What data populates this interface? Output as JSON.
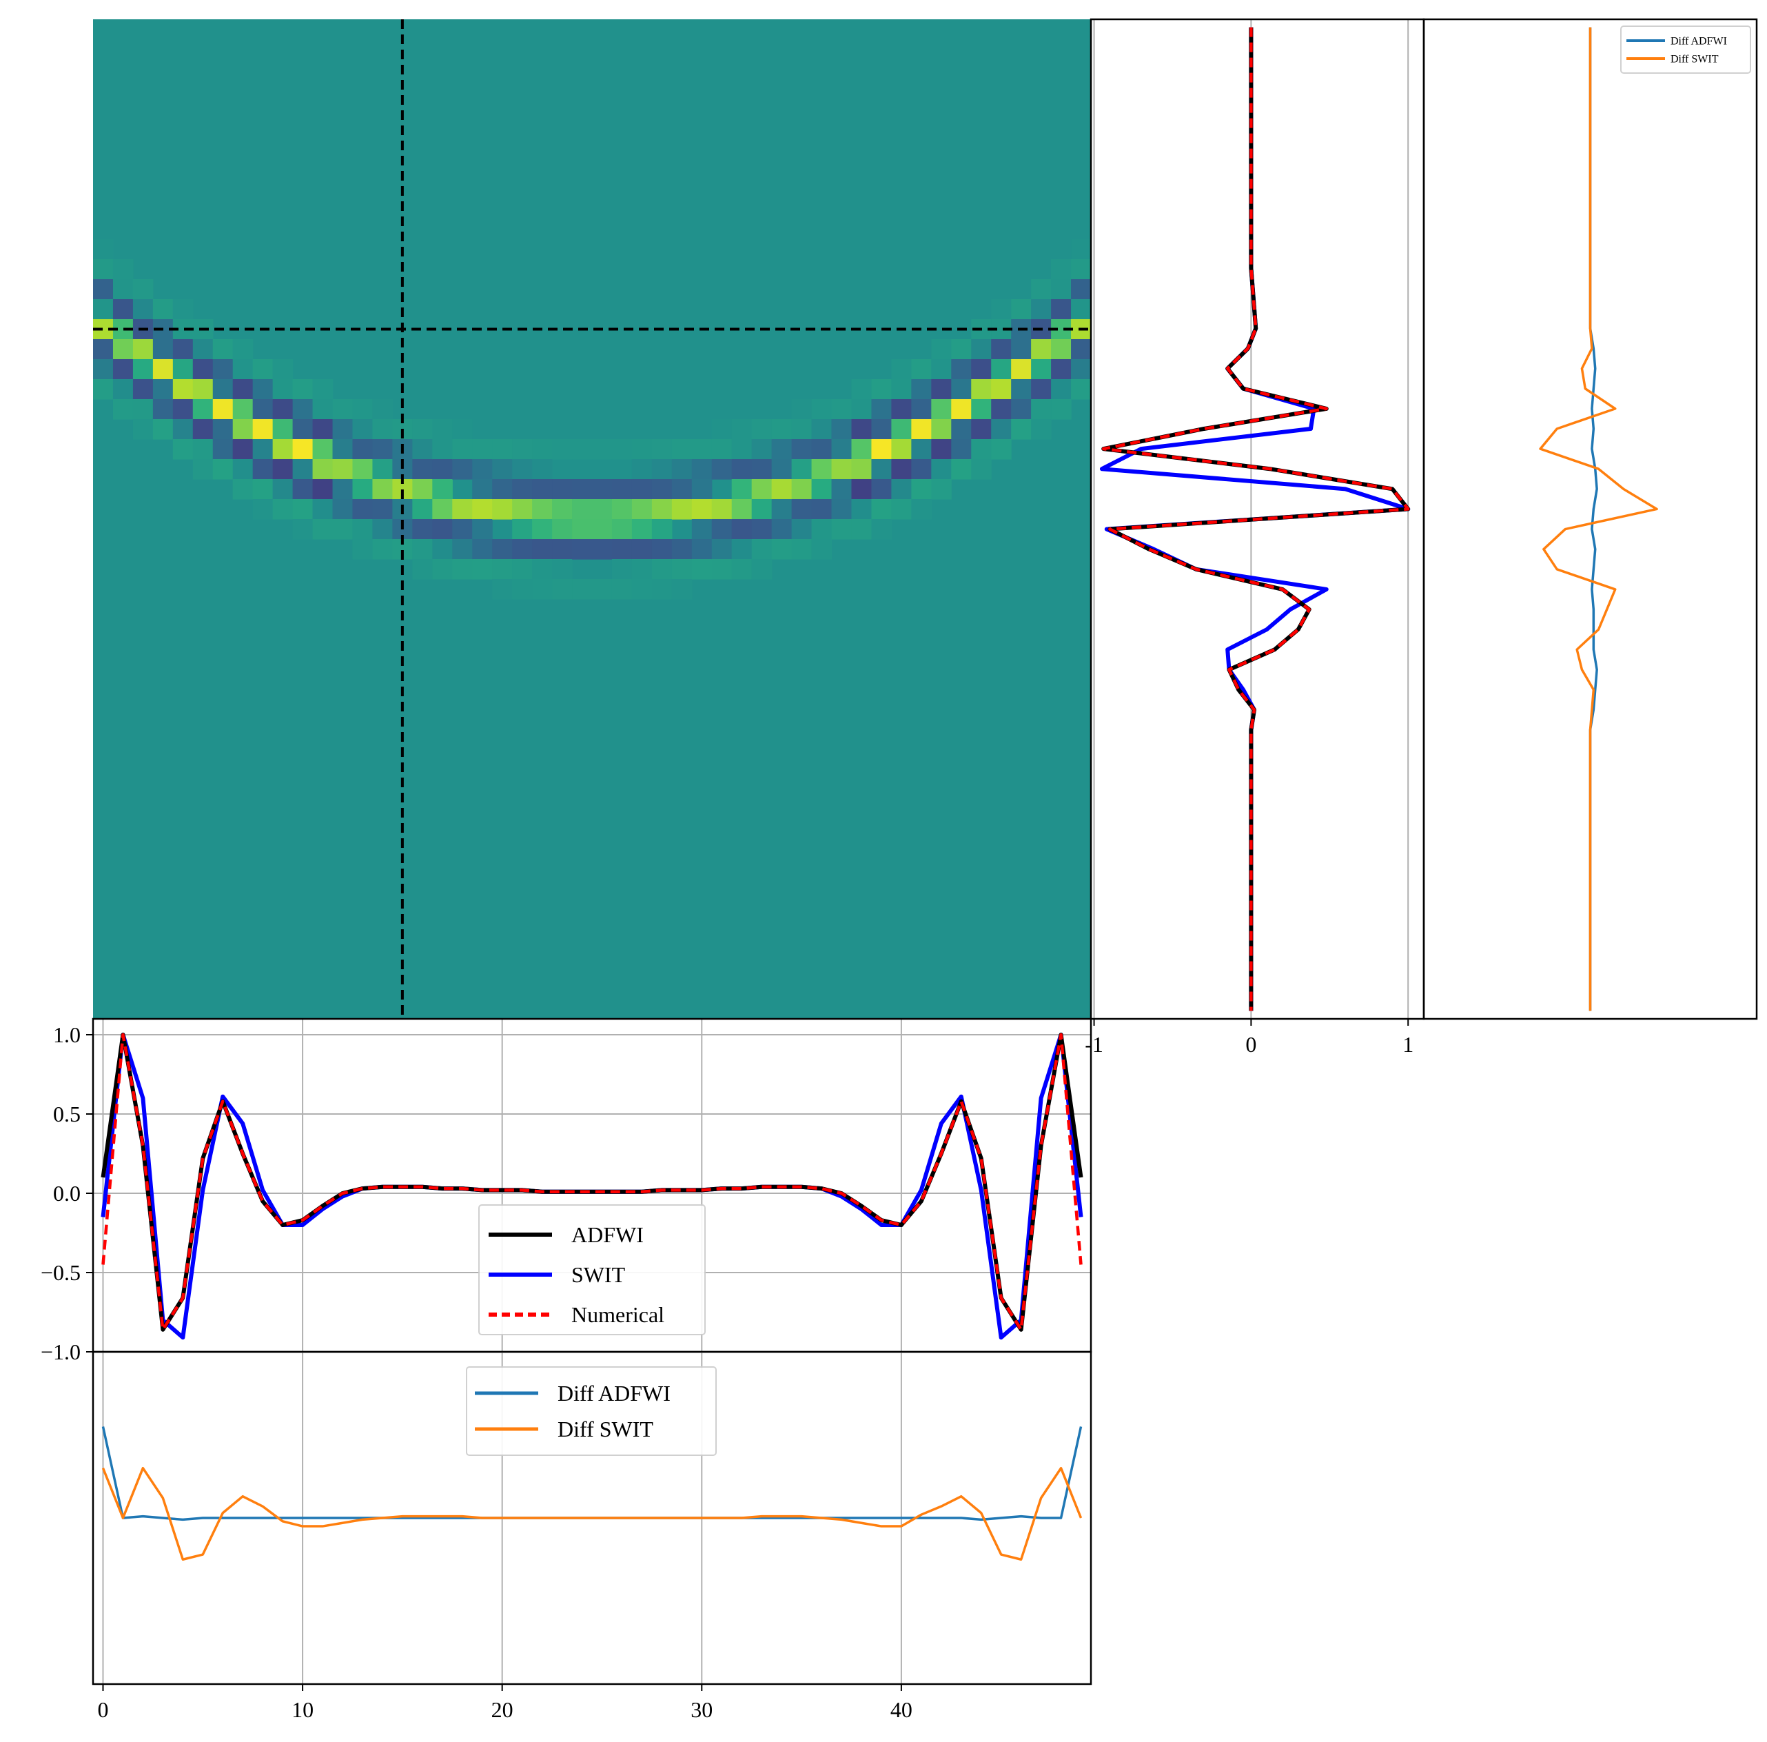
{
  "colors": {
    "adfwi": "#000000",
    "swit": "#0000ff",
    "numerical": "#ff0000",
    "diff_adfwi": "#1f77b4",
    "diff_swit": "#ff7f0e",
    "grid": "#b0b0b0",
    "crosshair": "#000000",
    "viridis": [
      "#440154",
      "#472d7b",
      "#3b528b",
      "#2c728e",
      "#21918c",
      "#28ae80",
      "#5ec962",
      "#addc30",
      "#fde725"
    ]
  },
  "chart_data": [
    {
      "id": "heatmap",
      "type": "heatmap",
      "colormap": "viridis",
      "n_cols": 50,
      "n_rows": 50,
      "clim": [
        -1,
        1
      ],
      "background": 0,
      "arc": {
        "center_col": 24.5,
        "depth_center": 24.5,
        "depth_edge": 14.8,
        "wavelet_width": 1.6
      },
      "crosshair": {
        "col": 15,
        "row": 15
      },
      "grid": false
    },
    {
      "id": "vertical-trace",
      "type": "line",
      "orientation": "vertical",
      "y": [
        0,
        1,
        2,
        3,
        4,
        5,
        6,
        7,
        8,
        9,
        10,
        11,
        12,
        13,
        14,
        15,
        16,
        17,
        18,
        19,
        20,
        21,
        22,
        23,
        24,
        25,
        26,
        27,
        28,
        29,
        30,
        31,
        32,
        33,
        34,
        35,
        36,
        37,
        38,
        39,
        40,
        41,
        42,
        43,
        44,
        45,
        46,
        47,
        48,
        49
      ],
      "ylim": [
        49.4,
        -0.4
      ],
      "xlim": [
        -1.02,
        1.1
      ],
      "xticks": [
        -1,
        0,
        1
      ],
      "xticklabels": [
        "-1",
        "0",
        "1"
      ],
      "grid": true,
      "series": [
        {
          "name": "ADFWI",
          "style": "solid",
          "values": [
            0,
            0,
            0,
            0,
            0,
            0,
            0,
            0,
            0,
            0,
            0,
            0,
            0,
            0.01,
            0.02,
            0.03,
            -0.02,
            -0.15,
            -0.05,
            0.48,
            -0.3,
            -0.94,
            0.12,
            0.9,
            1.0,
            -0.9,
            -0.65,
            -0.35,
            0.2,
            0.37,
            0.3,
            0.15,
            -0.14,
            -0.08,
            0.02,
            0,
            0,
            0,
            0,
            0,
            0,
            0,
            0,
            0,
            0,
            0,
            0,
            0,
            0,
            0
          ]
        },
        {
          "name": "SWIT",
          "style": "solid",
          "values": [
            0,
            0,
            0,
            0,
            0,
            0,
            0,
            0,
            0,
            0,
            0,
            0,
            0,
            0.01,
            0.02,
            0.03,
            -0.02,
            -0.15,
            -0.05,
            0.4,
            0.38,
            -0.7,
            -0.95,
            0.6,
            1.0,
            -0.92,
            -0.62,
            -0.35,
            0.48,
            0.25,
            0.1,
            -0.15,
            -0.14,
            -0.05,
            0.02,
            0,
            0,
            0,
            0,
            0,
            0,
            0,
            0,
            0,
            0,
            0,
            0,
            0,
            0,
            0
          ]
        },
        {
          "name": "Numerical",
          "style": "dashed",
          "values": [
            0,
            0,
            0,
            0,
            0,
            0,
            0,
            0,
            0,
            0,
            0,
            0,
            0,
            0.01,
            0.02,
            0.03,
            -0.02,
            -0.15,
            -0.05,
            0.48,
            -0.3,
            -0.94,
            0.12,
            0.9,
            1.0,
            -0.9,
            -0.65,
            -0.35,
            0.2,
            0.37,
            0.3,
            0.15,
            -0.14,
            -0.08,
            0.02,
            0,
            0,
            0,
            0,
            0,
            0,
            0,
            0,
            0,
            0,
            0,
            0,
            0,
            0,
            0
          ]
        }
      ]
    },
    {
      "id": "vertical-diff",
      "type": "line",
      "orientation": "vertical",
      "y": [
        0,
        1,
        2,
        3,
        4,
        5,
        6,
        7,
        8,
        9,
        10,
        11,
        12,
        13,
        14,
        15,
        16,
        17,
        18,
        19,
        20,
        21,
        22,
        23,
        24,
        25,
        26,
        27,
        28,
        29,
        30,
        31,
        32,
        33,
        34,
        35,
        36,
        37,
        38,
        39,
        40,
        41,
        42,
        43,
        44,
        45,
        46,
        47,
        48,
        49
      ],
      "ylim": [
        49.4,
        -0.4
      ],
      "xlim": [
        -1.0,
        1.0
      ],
      "grid": false,
      "legend": {
        "placement": "upper right",
        "entries": [
          "Diff ADFWI",
          "Diff SWIT"
        ]
      },
      "series": [
        {
          "name": "Diff ADFWI",
          "values": [
            0,
            0,
            0,
            0,
            0,
            0,
            0,
            0,
            0,
            0,
            0,
            0,
            0,
            0,
            0,
            0,
            0.02,
            0.03,
            0.02,
            0.01,
            0.02,
            0.01,
            0.03,
            0.04,
            0.02,
            0.01,
            0.03,
            0.02,
            0.01,
            0.02,
            0.02,
            0.02,
            0.04,
            0.03,
            0.02,
            0,
            0,
            0,
            0,
            0,
            0,
            0,
            0,
            0,
            0,
            0,
            0,
            0,
            0,
            0
          ]
        },
        {
          "name": "Diff SWIT",
          "values": [
            0,
            0,
            0,
            0,
            0,
            0,
            0,
            0,
            0,
            0,
            0,
            0,
            0,
            0,
            0,
            0,
            0.01,
            -0.05,
            -0.03,
            0.15,
            -0.2,
            -0.3,
            0.05,
            0.2,
            0.4,
            -0.15,
            -0.28,
            -0.2,
            0.15,
            0.1,
            0.05,
            -0.08,
            -0.05,
            0.02,
            0.01,
            0,
            0,
            0,
            0,
            0,
            0,
            0,
            0,
            0,
            0,
            0,
            0,
            0,
            0,
            0
          ]
        }
      ]
    },
    {
      "id": "horizontal-trace",
      "type": "line",
      "x": [
        0,
        1,
        2,
        3,
        4,
        5,
        6,
        7,
        8,
        9,
        10,
        11,
        12,
        13,
        14,
        15,
        16,
        17,
        18,
        19,
        20,
        21,
        22,
        23,
        24,
        25,
        26,
        27,
        28,
        29,
        30,
        31,
        32,
        33,
        34,
        35,
        36,
        37,
        38,
        39,
        40,
        41,
        42,
        43,
        44,
        45,
        46,
        47,
        48,
        49
      ],
      "xlim": [
        -0.5,
        49.5
      ],
      "ylim": [
        -1.0,
        1.1
      ],
      "yticks": [
        1.0,
        0.5,
        0.0,
        -0.5,
        -1.0
      ],
      "yticklabels": [
        "1.0",
        "0.5",
        "0.0",
        "−0.5",
        "−1.0"
      ],
      "grid": true,
      "legend": {
        "placement": "lower center",
        "entries": [
          "ADFWI",
          "SWIT",
          "Numerical"
        ]
      },
      "series": [
        {
          "name": "ADFWI",
          "style": "solid",
          "values": [
            0.1,
            1.0,
            0.3,
            -0.86,
            -0.66,
            0.22,
            0.58,
            0.25,
            -0.05,
            -0.2,
            -0.17,
            -0.08,
            0.0,
            0.03,
            0.04,
            0.04,
            0.04,
            0.03,
            0.03,
            0.02,
            0.02,
            0.02,
            0.01,
            0.01,
            0.01,
            0.01,
            0.01,
            0.01,
            0.02,
            0.02,
            0.02,
            0.03,
            0.03,
            0.04,
            0.04,
            0.04,
            0.03,
            0.0,
            -0.08,
            -0.17,
            -0.2,
            -0.05,
            0.25,
            0.58,
            0.22,
            -0.66,
            -0.86,
            0.3,
            1.0,
            0.1
          ]
        },
        {
          "name": "SWIT",
          "style": "solid",
          "values": [
            -0.15,
            1.0,
            0.6,
            -0.8,
            -0.91,
            0.02,
            0.61,
            0.44,
            0.02,
            -0.2,
            -0.2,
            -0.1,
            -0.02,
            0.03,
            0.04,
            0.04,
            0.04,
            0.03,
            0.03,
            0.02,
            0.02,
            0.02,
            0.01,
            0.01,
            0.01,
            0.01,
            0.01,
            0.01,
            0.02,
            0.02,
            0.02,
            0.03,
            0.03,
            0.04,
            0.04,
            0.04,
            0.03,
            -0.02,
            -0.1,
            -0.2,
            -0.2,
            0.02,
            0.44,
            0.61,
            0.02,
            -0.91,
            -0.8,
            0.6,
            1.0,
            -0.15
          ]
        },
        {
          "name": "Numerical",
          "style": "dashed",
          "values": [
            -0.45,
            1.0,
            0.3,
            -0.86,
            -0.66,
            0.22,
            0.58,
            0.25,
            -0.05,
            -0.2,
            -0.17,
            -0.08,
            0.0,
            0.03,
            0.04,
            0.04,
            0.04,
            0.03,
            0.03,
            0.02,
            0.02,
            0.02,
            0.01,
            0.01,
            0.01,
            0.01,
            0.01,
            0.01,
            0.02,
            0.02,
            0.02,
            0.03,
            0.03,
            0.04,
            0.04,
            0.04,
            0.03,
            0.0,
            -0.08,
            -0.17,
            -0.2,
            -0.05,
            0.25,
            0.58,
            0.22,
            -0.66,
            -0.86,
            0.3,
            1.0,
            -0.45
          ]
        }
      ]
    },
    {
      "id": "horizontal-diff",
      "type": "line",
      "x": [
        0,
        1,
        2,
        3,
        4,
        5,
        6,
        7,
        8,
        9,
        10,
        11,
        12,
        13,
        14,
        15,
        16,
        17,
        18,
        19,
        20,
        21,
        22,
        23,
        24,
        25,
        26,
        27,
        28,
        29,
        30,
        31,
        32,
        33,
        34,
        35,
        36,
        37,
        38,
        39,
        40,
        41,
        42,
        43,
        44,
        45,
        46,
        47,
        48,
        49
      ],
      "xlim": [
        -0.5,
        49.5
      ],
      "ylim": [
        -1.0,
        1.0
      ],
      "xticks": [
        0,
        10,
        20,
        30,
        40
      ],
      "xticklabels": [
        "0",
        "10",
        "20",
        "30",
        "40"
      ],
      "grid": true,
      "legend": {
        "placement": "upper center",
        "entries": [
          "Diff ADFWI",
          "Diff SWIT"
        ]
      },
      "series": [
        {
          "name": "Diff ADFWI",
          "values": [
            0.55,
            0.0,
            0.01,
            0.0,
            -0.01,
            0.0,
            0.0,
            0.0,
            0.0,
            0.0,
            0.0,
            0.0,
            0.0,
            0.0,
            0.0,
            0.0,
            0.0,
            0.0,
            0.0,
            0.0,
            0.0,
            0.0,
            0.0,
            0.0,
            0.0,
            0.0,
            0.0,
            0.0,
            0.0,
            0.0,
            0.0,
            0.0,
            0.0,
            0.0,
            0.0,
            0.0,
            0.0,
            0.0,
            0.0,
            0.0,
            0.0,
            0.0,
            0.0,
            0.0,
            -0.01,
            0.0,
            0.01,
            0.0,
            0.0,
            0.55
          ]
        },
        {
          "name": "Diff SWIT",
          "values": [
            0.3,
            0.0,
            0.3,
            0.12,
            -0.25,
            -0.22,
            0.03,
            0.13,
            0.07,
            -0.02,
            -0.05,
            -0.05,
            -0.03,
            -0.01,
            0.0,
            0.01,
            0.01,
            0.01,
            0.01,
            0.0,
            0.0,
            0.0,
            0.0,
            0.0,
            0.0,
            0.0,
            0.0,
            0.0,
            0.0,
            0.0,
            0.0,
            0.0,
            0.0,
            0.01,
            0.01,
            0.01,
            0.0,
            -0.01,
            -0.03,
            -0.05,
            -0.05,
            0.02,
            0.07,
            0.13,
            0.03,
            -0.22,
            -0.25,
            0.12,
            0.3,
            0.0
          ]
        }
      ]
    }
  ]
}
